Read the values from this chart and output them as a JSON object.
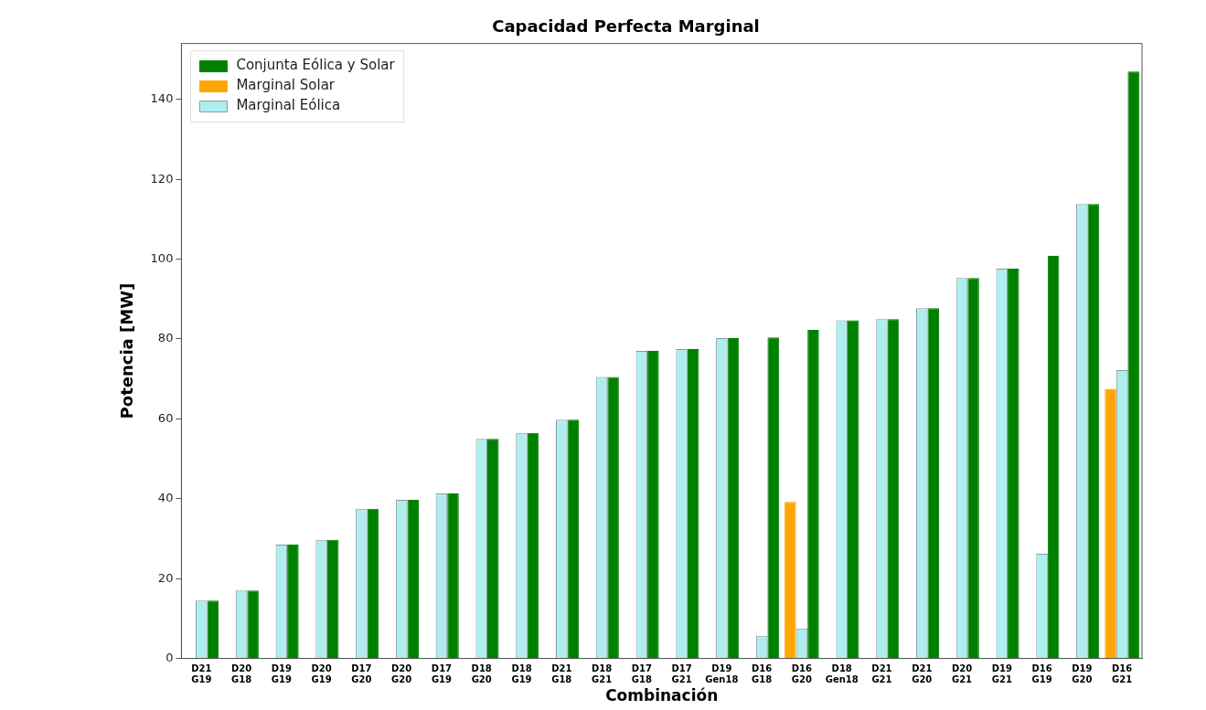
{
  "chart_data": {
    "type": "bar",
    "title": "Capacidad Perfecta Marginal",
    "xlabel": "Combinación",
    "ylabel": "Potencia [MW]",
    "categories": [
      "D21\nG19",
      "D20\nG18",
      "D19\nG19",
      "D20\nG19",
      "D17\nG20",
      "D20\nG20",
      "D17\nG19",
      "D18\nG20",
      "D18\nG19",
      "D21\nG18",
      "D18\nG21",
      "D17\nG18",
      "D17\nG21",
      "D19\nGen18",
      "D16\nG18",
      "D16\nG20",
      "D18\nGen18",
      "D21\nG21",
      "D21\nG20",
      "D20\nG21",
      "D19\nG21",
      "D16\nG19",
      "D19\nG20",
      "D16\nG21"
    ],
    "series": [
      {
        "name": "Marginal Solar",
        "color": "#ffa500",
        "values": [
          null,
          null,
          null,
          null,
          null,
          null,
          null,
          null,
          null,
          null,
          null,
          null,
          null,
          null,
          null,
          39.2,
          null,
          null,
          null,
          null,
          null,
          null,
          null,
          67.5
        ]
      },
      {
        "name": "Marginal Eólica",
        "color": "#afeeee",
        "values": [
          14.5,
          17,
          28.5,
          29.7,
          37.5,
          39.7,
          41.3,
          55,
          56.5,
          59.8,
          70.5,
          77,
          77.5,
          80.2,
          5.7,
          7.5,
          84.7,
          85,
          87.7,
          95.3,
          97.6,
          26.2,
          113.8,
          72.2
        ]
      },
      {
        "name": "Conjunta Eólica y Solar",
        "color": "#008000",
        "values": [
          14.5,
          17,
          28.5,
          29.7,
          37.5,
          39.7,
          41.3,
          55,
          56.5,
          59.8,
          70.5,
          77,
          77.5,
          80.2,
          80.4,
          82.3,
          84.7,
          85,
          87.7,
          95.3,
          97.6,
          100.8,
          113.8,
          147
        ]
      }
    ],
    "ylim": [
      0,
      154
    ],
    "yticks": [
      0,
      20,
      40,
      60,
      80,
      100,
      120,
      140
    ],
    "grid": false,
    "legend": "top left"
  }
}
